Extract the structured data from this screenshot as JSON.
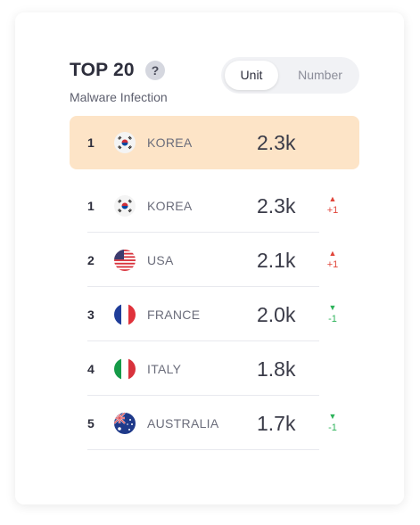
{
  "header": {
    "title": "TOP 20",
    "help_label": "?",
    "subtitle": "Malware Infection"
  },
  "toggle": {
    "options": [
      "Unit",
      "Number"
    ],
    "selected": "Unit"
  },
  "highlighted": {
    "rank": "1",
    "country": "KOREA",
    "flag": "south-korea-flag",
    "value": "2.3k"
  },
  "rows": [
    {
      "rank": "1",
      "country": "KOREA",
      "flag": "south-korea-flag",
      "value": "2.3k",
      "change": "+1",
      "direction": "up"
    },
    {
      "rank": "2",
      "country": "USA",
      "flag": "usa-flag",
      "value": "2.1k",
      "change": "+1",
      "direction": "up"
    },
    {
      "rank": "3",
      "country": "FRANCE",
      "flag": "france-flag",
      "value": "2.0k",
      "change": "-1",
      "direction": "down"
    },
    {
      "rank": "4",
      "country": "ITALY",
      "flag": "italy-flag",
      "value": "1.8k",
      "change": "",
      "direction": "none"
    },
    {
      "rank": "5",
      "country": "AUSTRALIA",
      "flag": "australia-flag",
      "value": "1.7k",
      "change": "-1",
      "direction": "down"
    }
  ],
  "colors": {
    "highlight": "#fde4c7",
    "up": "#e0453a",
    "down": "#2db35a"
  }
}
